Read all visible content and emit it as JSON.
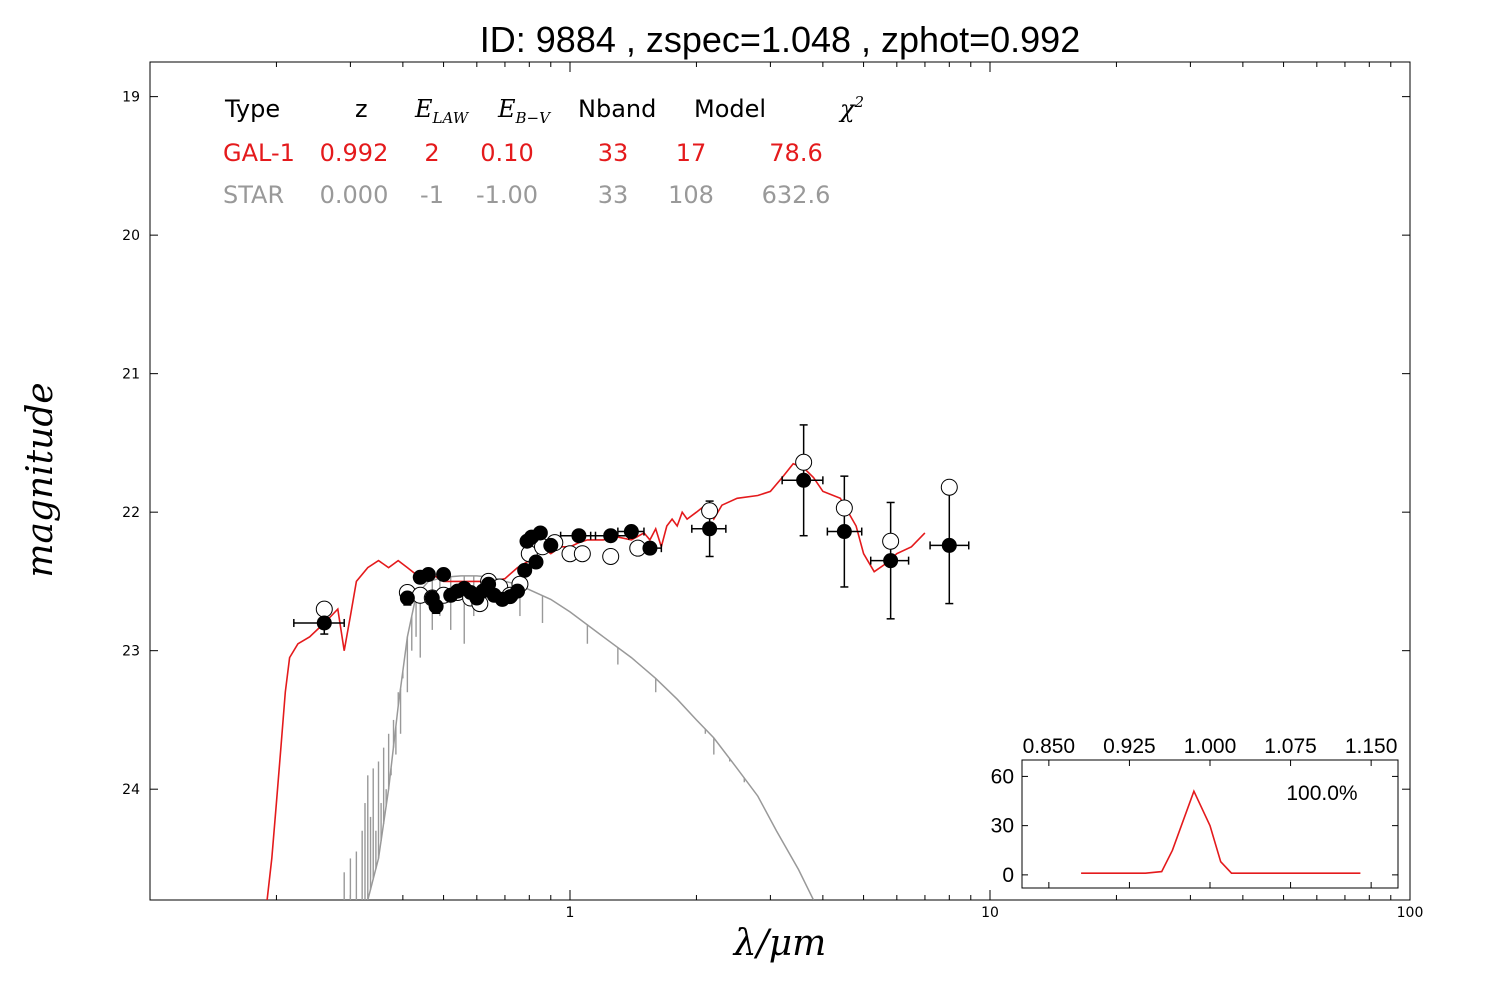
{
  "chart_data": {
    "type": "scatter",
    "title": "ID:  9884  , zspec=1.048 , zphot=0.992",
    "xlabel": "λ/μm",
    "ylabel": "magnitude",
    "xscale": "log",
    "xlim": [
      0.1,
      100
    ],
    "ylim": [
      24.8,
      18.75
    ],
    "yaxis_inverted": true,
    "xticks": [
      {
        "v": 1,
        "label": "1"
      },
      {
        "v": 10,
        "label": "10"
      },
      {
        "v": 100,
        "label": "100"
      }
    ],
    "yticks": [
      {
        "v": 19,
        "label": "19"
      },
      {
        "v": 20,
        "label": "20"
      },
      {
        "v": 21,
        "label": "21"
      },
      {
        "v": 22,
        "label": "22"
      },
      {
        "v": 23,
        "label": "23"
      },
      {
        "v": 24,
        "label": "24"
      }
    ],
    "grid": false,
    "fit_table": {
      "header": {
        "type": "Type",
        "z": "z",
        "elaw": "E",
        "elaw_sub": "LAW",
        "ebv": "E",
        "ebv_sub": "B−V",
        "nband": "Nband",
        "model": "Model",
        "chi2": "χ",
        "chi2_sup": "2"
      },
      "rows": [
        {
          "type": "GAL-1",
          "z": "0.992",
          "elaw": "2",
          "ebv": "0.10",
          "nband": "33",
          "model": "17",
          "chi2": "78.6",
          "color": "#e41a1c"
        },
        {
          "type": "STAR",
          "z": "0.000",
          "elaw": "-1",
          "ebv": "-1.00",
          "nband": "33",
          "model": "108",
          "chi2": "632.6",
          "color": "#999999"
        }
      ]
    },
    "galaxy_model": {
      "name": "GAL-1",
      "color": "#e41a1c",
      "points": [
        [
          0.19,
          24.8
        ],
        [
          0.195,
          24.5
        ],
        [
          0.2,
          24.1
        ],
        [
          0.205,
          23.7
        ],
        [
          0.21,
          23.3
        ],
        [
          0.215,
          23.05
        ],
        [
          0.225,
          22.95
        ],
        [
          0.24,
          22.9
        ],
        [
          0.26,
          22.8
        ],
        [
          0.27,
          22.75
        ],
        [
          0.28,
          22.7
        ],
        [
          0.29,
          23.0
        ],
        [
          0.3,
          22.75
        ],
        [
          0.31,
          22.5
        ],
        [
          0.33,
          22.4
        ],
        [
          0.35,
          22.35
        ],
        [
          0.37,
          22.4
        ],
        [
          0.39,
          22.35
        ],
        [
          0.41,
          22.4
        ],
        [
          0.43,
          22.45
        ],
        [
          0.45,
          22.5
        ],
        [
          0.47,
          22.45
        ],
        [
          0.5,
          22.5
        ],
        [
          0.55,
          22.5
        ],
        [
          0.6,
          22.5
        ],
        [
          0.65,
          22.5
        ],
        [
          0.7,
          22.48
        ],
        [
          0.75,
          22.4
        ],
        [
          0.8,
          22.35
        ],
        [
          0.85,
          22.25
        ],
        [
          0.9,
          22.3
        ],
        [
          0.95,
          22.25
        ],
        [
          1.0,
          22.25
        ],
        [
          1.05,
          22.22
        ],
        [
          1.1,
          22.2
        ],
        [
          1.15,
          22.2
        ],
        [
          1.2,
          22.2
        ],
        [
          1.3,
          22.18
        ],
        [
          1.4,
          22.2
        ],
        [
          1.5,
          22.15
        ],
        [
          1.55,
          22.2
        ],
        [
          1.6,
          22.12
        ],
        [
          1.65,
          22.25
        ],
        [
          1.7,
          22.1
        ],
        [
          1.75,
          22.05
        ],
        [
          1.8,
          22.1
        ],
        [
          1.85,
          22.0
        ],
        [
          1.9,
          22.05
        ],
        [
          2.0,
          22.0
        ],
        [
          2.1,
          21.95
        ],
        [
          2.2,
          22.05
        ],
        [
          2.3,
          21.95
        ],
        [
          2.5,
          21.9
        ],
        [
          2.8,
          21.88
        ],
        [
          3.0,
          21.85
        ],
        [
          3.2,
          21.75
        ],
        [
          3.4,
          21.65
        ],
        [
          3.6,
          21.68
        ],
        [
          3.8,
          21.75
        ],
        [
          4.0,
          21.85
        ],
        [
          4.4,
          21.9
        ],
        [
          4.8,
          22.1
        ],
        [
          5.0,
          22.3
        ],
        [
          5.3,
          22.43
        ],
        [
          5.6,
          22.38
        ],
        [
          6.0,
          22.3
        ],
        [
          6.5,
          22.25
        ],
        [
          7.0,
          22.15
        ]
      ]
    },
    "star_model": {
      "name": "STAR",
      "color": "#999999",
      "smooth": [
        [
          0.33,
          24.8
        ],
        [
          0.35,
          24.5
        ],
        [
          0.37,
          24.0
        ],
        [
          0.39,
          23.4
        ],
        [
          0.41,
          22.9
        ],
        [
          0.43,
          22.6
        ],
        [
          0.46,
          22.5
        ],
        [
          0.5,
          22.47
        ],
        [
          0.55,
          22.46
        ],
        [
          0.6,
          22.46
        ],
        [
          0.65,
          22.47
        ],
        [
          0.7,
          22.5
        ],
        [
          0.75,
          22.52
        ],
        [
          0.8,
          22.56
        ],
        [
          0.9,
          22.63
        ],
        [
          1.0,
          22.72
        ],
        [
          1.2,
          22.9
        ],
        [
          1.4,
          23.05
        ],
        [
          1.6,
          23.2
        ],
        [
          1.8,
          23.35
        ],
        [
          2.0,
          23.5
        ],
        [
          2.2,
          23.63
        ],
        [
          2.5,
          23.85
        ],
        [
          2.8,
          24.05
        ],
        [
          3.1,
          24.3
        ],
        [
          3.5,
          24.58
        ],
        [
          3.8,
          24.8
        ]
      ],
      "absorption": [
        [
          0.29,
          24.6
        ],
        [
          0.3,
          24.5
        ],
        [
          0.31,
          24.45
        ],
        [
          0.32,
          24.3
        ],
        [
          0.325,
          24.1
        ],
        [
          0.33,
          23.9
        ],
        [
          0.335,
          24.2
        ],
        [
          0.34,
          23.85
        ],
        [
          0.345,
          24.3
        ],
        [
          0.35,
          23.8
        ],
        [
          0.355,
          24.1
        ],
        [
          0.36,
          23.7
        ],
        [
          0.365,
          24.0
        ],
        [
          0.37,
          23.6
        ],
        [
          0.375,
          23.9
        ],
        [
          0.38,
          23.5
        ],
        [
          0.385,
          23.75
        ],
        [
          0.39,
          23.3
        ],
        [
          0.395,
          23.6
        ],
        [
          0.4,
          23.2
        ],
        [
          0.41,
          23.3
        ],
        [
          0.42,
          23.0
        ],
        [
          0.43,
          22.9
        ],
        [
          0.44,
          23.05
        ],
        [
          0.47,
          22.85
        ],
        [
          0.49,
          22.75
        ],
        [
          0.52,
          22.85
        ],
        [
          0.56,
          22.95
        ],
        [
          0.59,
          22.75
        ],
        [
          0.66,
          22.65
        ],
        [
          0.76,
          22.75
        ],
        [
          0.86,
          22.8
        ],
        [
          1.1,
          22.95
        ],
        [
          1.3,
          23.1
        ],
        [
          1.6,
          23.3
        ],
        [
          2.1,
          23.6
        ],
        [
          2.2,
          23.75
        ],
        [
          2.4,
          23.8
        ],
        [
          2.6,
          23.95
        ]
      ]
    },
    "observed": [
      {
        "x": 0.26,
        "y": 22.8,
        "xerr_lo": 0.22,
        "xerr_hi": 0.29,
        "yerr": 0.08
      },
      {
        "x": 0.41,
        "y": 22.62,
        "xerr_lo": 0.4,
        "xerr_hi": 0.42,
        "yerr": 0.05
      },
      {
        "x": 0.44,
        "y": 22.47,
        "xerr_lo": 0.43,
        "xerr_hi": 0.45,
        "yerr": 0.03
      },
      {
        "x": 0.46,
        "y": 22.45,
        "xerr_lo": 0.45,
        "xerr_hi": 0.47,
        "yerr": 0.03
      },
      {
        "x": 0.47,
        "y": 22.62,
        "xerr_lo": 0.46,
        "xerr_hi": 0.48,
        "yerr": 0.03
      },
      {
        "x": 0.48,
        "y": 22.68,
        "xerr_lo": 0.47,
        "xerr_hi": 0.49,
        "yerr": 0.05
      },
      {
        "x": 0.5,
        "y": 22.45,
        "xerr_lo": 0.49,
        "xerr_hi": 0.51,
        "yerr": 0.03
      },
      {
        "x": 0.52,
        "y": 22.6,
        "xerr_lo": 0.51,
        "xerr_hi": 0.53,
        "yerr": 0.03
      },
      {
        "x": 0.54,
        "y": 22.57,
        "xerr_lo": 0.53,
        "xerr_hi": 0.55,
        "yerr": 0.03
      },
      {
        "x": 0.56,
        "y": 22.55,
        "xerr_lo": 0.55,
        "xerr_hi": 0.57,
        "yerr": 0.03
      },
      {
        "x": 0.58,
        "y": 22.58,
        "xerr_lo": 0.57,
        "xerr_hi": 0.59,
        "yerr": 0.03
      },
      {
        "x": 0.6,
        "y": 22.62,
        "xerr_lo": 0.59,
        "xerr_hi": 0.61,
        "yerr": 0.03
      },
      {
        "x": 0.62,
        "y": 22.57,
        "xerr_lo": 0.61,
        "xerr_hi": 0.63,
        "yerr": 0.03
      },
      {
        "x": 0.64,
        "y": 22.52,
        "xerr_lo": 0.63,
        "xerr_hi": 0.65,
        "yerr": 0.03
      },
      {
        "x": 0.66,
        "y": 22.6,
        "xerr_lo": 0.65,
        "xerr_hi": 0.67,
        "yerr": 0.03
      },
      {
        "x": 0.69,
        "y": 22.63,
        "xerr_lo": 0.67,
        "xerr_hi": 0.71,
        "yerr": 0.03
      },
      {
        "x": 0.72,
        "y": 22.61,
        "xerr_lo": 0.7,
        "xerr_hi": 0.74,
        "yerr": 0.03
      },
      {
        "x": 0.75,
        "y": 22.57,
        "xerr_lo": 0.73,
        "xerr_hi": 0.77,
        "yerr": 0.03
      },
      {
        "x": 0.78,
        "y": 22.42,
        "xerr_lo": 0.76,
        "xerr_hi": 0.8,
        "yerr": 0.03
      },
      {
        "x": 0.79,
        "y": 22.21,
        "xerr_lo": 0.77,
        "xerr_hi": 0.81,
        "yerr": 0.03
      },
      {
        "x": 0.81,
        "y": 22.18,
        "xerr_lo": 0.79,
        "xerr_hi": 0.83,
        "yerr": 0.03
      },
      {
        "x": 0.83,
        "y": 22.36,
        "xerr_lo": 0.81,
        "xerr_hi": 0.85,
        "yerr": 0.03
      },
      {
        "x": 0.85,
        "y": 22.15,
        "xerr_lo": 0.83,
        "xerr_hi": 0.87,
        "yerr": 0.03
      },
      {
        "x": 0.9,
        "y": 22.24,
        "xerr_lo": 0.87,
        "xerr_hi": 0.93,
        "yerr": 0.03
      },
      {
        "x": 1.05,
        "y": 22.17,
        "xerr_lo": 0.95,
        "xerr_hi": 1.15,
        "yerr": 0.04
      },
      {
        "x": 1.25,
        "y": 22.17,
        "xerr_lo": 1.12,
        "xerr_hi": 1.38,
        "yerr": 0.04
      },
      {
        "x": 1.4,
        "y": 22.14,
        "xerr_lo": 1.3,
        "xerr_hi": 1.5,
        "yerr": 0.04
      },
      {
        "x": 1.55,
        "y": 22.26,
        "xerr_lo": 1.45,
        "xerr_hi": 1.65,
        "yerr": 0.04
      },
      {
        "x": 2.15,
        "y": 22.12,
        "xerr_lo": 1.95,
        "xerr_hi": 2.35,
        "yerr": 0.2
      },
      {
        "x": 3.6,
        "y": 21.77,
        "xerr_lo": 3.2,
        "xerr_hi": 4.0,
        "yerr": 0.4
      },
      {
        "x": 4.5,
        "y": 22.14,
        "xerr_lo": 4.1,
        "xerr_hi": 4.95,
        "yerr": 0.4
      },
      {
        "x": 5.8,
        "y": 22.35,
        "xerr_lo": 5.2,
        "xerr_hi": 6.4,
        "yerr": 0.42
      },
      {
        "x": 8.0,
        "y": 22.24,
        "xerr_lo": 7.2,
        "xerr_hi": 8.9,
        "yerr": 0.42
      }
    ],
    "model_mags": [
      [
        0.26,
        22.7
      ],
      [
        0.41,
        22.58
      ],
      [
        0.44,
        22.6
      ],
      [
        0.47,
        22.62
      ],
      [
        0.5,
        22.6
      ],
      [
        0.54,
        22.58
      ],
      [
        0.58,
        22.62
      ],
      [
        0.61,
        22.66
      ],
      [
        0.64,
        22.5
      ],
      [
        0.68,
        22.54
      ],
      [
        0.72,
        22.6
      ],
      [
        0.76,
        22.52
      ],
      [
        0.8,
        22.3
      ],
      [
        0.86,
        22.25
      ],
      [
        0.92,
        22.22
      ],
      [
        1.0,
        22.3
      ],
      [
        1.07,
        22.3
      ],
      [
        1.25,
        22.32
      ],
      [
        1.45,
        22.26
      ],
      [
        2.15,
        21.99
      ],
      [
        3.6,
        21.64
      ],
      [
        4.5,
        21.97
      ],
      [
        5.8,
        22.21
      ],
      [
        8.0,
        21.82
      ]
    ],
    "inset": {
      "xlim": [
        0.825,
        1.175
      ],
      "ylim": [
        -8,
        70
      ],
      "xticks": [
        {
          "v": 0.85,
          "label": "0.850"
        },
        {
          "v": 0.925,
          "label": "0.925"
        },
        {
          "v": 1.0,
          "label": "1.000"
        },
        {
          "v": 1.075,
          "label": "1.075"
        },
        {
          "v": 1.15,
          "label": "1.150"
        }
      ],
      "yticks": [
        {
          "v": 0,
          "label": "0"
        },
        {
          "v": 30,
          "label": "30"
        },
        {
          "v": 60,
          "label": "60"
        }
      ],
      "label": "100.0%",
      "color": "#e41a1c",
      "pdz": [
        [
          0.88,
          1
        ],
        [
          0.94,
          1
        ],
        [
          0.955,
          2
        ],
        [
          0.965,
          15
        ],
        [
          0.985,
          51
        ],
        [
          1.0,
          30
        ],
        [
          1.01,
          8
        ],
        [
          1.02,
          1
        ],
        [
          1.05,
          1
        ],
        [
          1.1,
          1
        ],
        [
          1.14,
          1
        ]
      ]
    }
  }
}
